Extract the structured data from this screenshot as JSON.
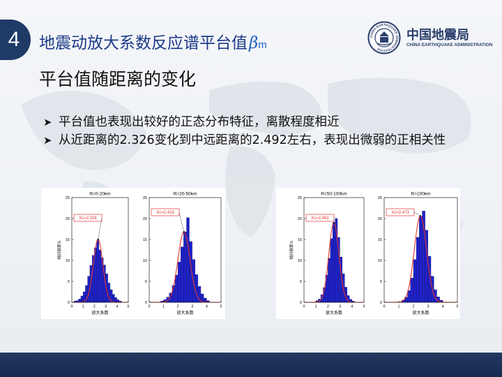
{
  "header": {
    "section_number": "4",
    "title_text": "地震动放大系数反应谱平台值",
    "title_symbol": "β",
    "title_subscript": "m"
  },
  "logo": {
    "name_cn": "中国地震局",
    "name_en": "CHINA EARTHQUAKE ADMINISTRATION",
    "emblem_ring_text": "CHINA EARTHQUAKE ADMINISTRATION"
  },
  "subtitle": "平台值随距离的变化",
  "bullets": [
    "平台值也表现出较好的正态分布特征，离散程度相近",
    "从近距离的2.326变化到中远距离的2.492左右，表现出微弱的正相关性"
  ],
  "colors": {
    "bar_fill": "#1f22c9",
    "bar_edge": "#0a0d70",
    "fit_curve": "#e3342f",
    "annotation_box": "#e3342f",
    "title_blue": "#1b3a86",
    "badge": "#1f3a67"
  },
  "chart_data": [
    {
      "type": "bar",
      "title": "R=0-20km",
      "xlabel": "放大系数",
      "ylabel": "相对频率%",
      "xlim": [
        0,
        5
      ],
      "ylim": [
        0,
        25
      ],
      "xticks": [
        "0",
        "1",
        "2",
        "3",
        "4",
        "5"
      ],
      "yticks": [
        "0",
        "5",
        "10",
        "15",
        "20",
        "25"
      ],
      "bin_width": 0.2,
      "bin_start": 0.2,
      "values": [
        0.3,
        0.4,
        0.8,
        1.5,
        2.5,
        4.0,
        6.2,
        8.8,
        11.2,
        13.0,
        14.8,
        12.5,
        10.6,
        8.9,
        6.8,
        4.6,
        3.0,
        1.9,
        1.1,
        0.6,
        0.3
      ],
      "fit_center": 2.326,
      "fit_peak": 15.0,
      "annotation": "Xc=2.326"
    },
    {
      "type": "bar",
      "title": "R=20-50km",
      "xlabel": "放大系数",
      "ylabel": "",
      "xlim": [
        0,
        5
      ],
      "ylim": [
        0,
        25
      ],
      "xticks": [
        "0",
        "1",
        "2",
        "3",
        "4",
        "5"
      ],
      "yticks": [
        "0",
        "5",
        "10",
        "15",
        "20",
        "25"
      ],
      "bin_width": 0.2,
      "bin_start": 0.8,
      "values": [
        0.3,
        0.6,
        1.2,
        2.2,
        4.0,
        6.5,
        9.6,
        13.2,
        16.8,
        20.2,
        14.5,
        10.2,
        6.6,
        3.8,
        2.0,
        1.0,
        0.4
      ],
      "fit_center": 2.419,
      "fit_peak": 16.8,
      "annotation": "Xc=2.419"
    },
    {
      "type": "bar",
      "title": "R=50-100km",
      "xlabel": "放大系数",
      "ylabel": "相对频率%",
      "xlim": [
        0,
        5
      ],
      "ylim": [
        0,
        25
      ],
      "xticks": [
        "0",
        "1",
        "2",
        "3",
        "4",
        "5"
      ],
      "yticks": [
        "0",
        "5",
        "10",
        "15",
        "20",
        "25"
      ],
      "bin_width": 0.2,
      "bin_start": 1.0,
      "values": [
        0.4,
        0.8,
        1.8,
        3.5,
        6.5,
        10.5,
        15.2,
        19.0,
        20.0,
        15.5,
        10.8,
        6.8,
        3.6,
        1.6,
        0.7,
        0.3
      ],
      "fit_center": 2.492,
      "fit_peak": 19.0,
      "annotation": "Xc=2.492"
    },
    {
      "type": "bar",
      "title": "R>100km",
      "xlabel": "放大系数",
      "ylabel": "",
      "xlim": [
        0,
        5
      ],
      "ylim": [
        0,
        25
      ],
      "xticks": [
        "0",
        "1",
        "2",
        "3",
        "4",
        "5"
      ],
      "yticks": [
        "0",
        "5",
        "10",
        "15",
        "20",
        "25"
      ],
      "bin_width": 0.2,
      "bin_start": 1.2,
      "values": [
        0.5,
        1.2,
        2.8,
        5.8,
        10.2,
        15.5,
        20.5,
        21.8,
        17.2,
        11.0,
        6.2,
        3.0,
        1.3,
        0.5
      ],
      "fit_center": 2.473,
      "fit_peak": 20.6,
      "annotation": "Xc=2.473"
    }
  ]
}
